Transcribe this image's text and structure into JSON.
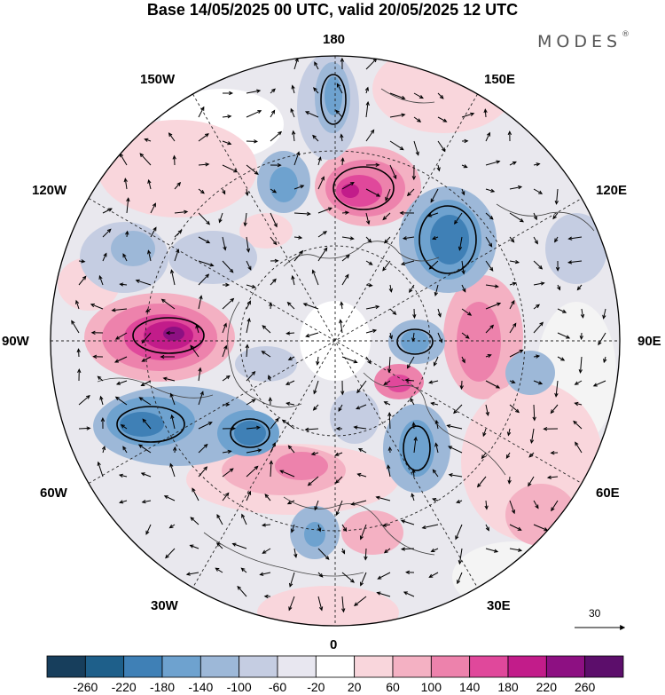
{
  "title": "Base 14/05/2025 00 UTC, valid 20/05/2025 12 UTC",
  "brand": {
    "name": "MODES",
    "mark": "®"
  },
  "longitude_labels": {
    "lon_180": "180",
    "lon_150w": "150W",
    "lon_150e": "150E",
    "lon_120w": "120W",
    "lon_120e": "120E",
    "lon_90w": "90W",
    "lon_90e": "90E",
    "lon_60w": "60W",
    "lon_60e": "60E",
    "lon_30w": "30W",
    "lon_30e": "30E",
    "lon_0": "0"
  },
  "vector_reference": {
    "value": "30"
  },
  "colorbar": {
    "ticks": [
      "-260",
      "-220",
      "-180",
      "-140",
      "-100",
      "-60",
      "-20",
      "20",
      "60",
      "100",
      "140",
      "180",
      "220",
      "260"
    ],
    "colors": [
      "#173e5c",
      "#1e5f8a",
      "#3f80b6",
      "#6ea2cf",
      "#9db8d8",
      "#c5cde2",
      "#e8e7f0",
      "#ffffff",
      "#f9d6dc",
      "#f4b1c3",
      "#ed82ac",
      "#e0489b",
      "#c21c8a",
      "#8d1082",
      "#5c0e6b"
    ]
  }
}
